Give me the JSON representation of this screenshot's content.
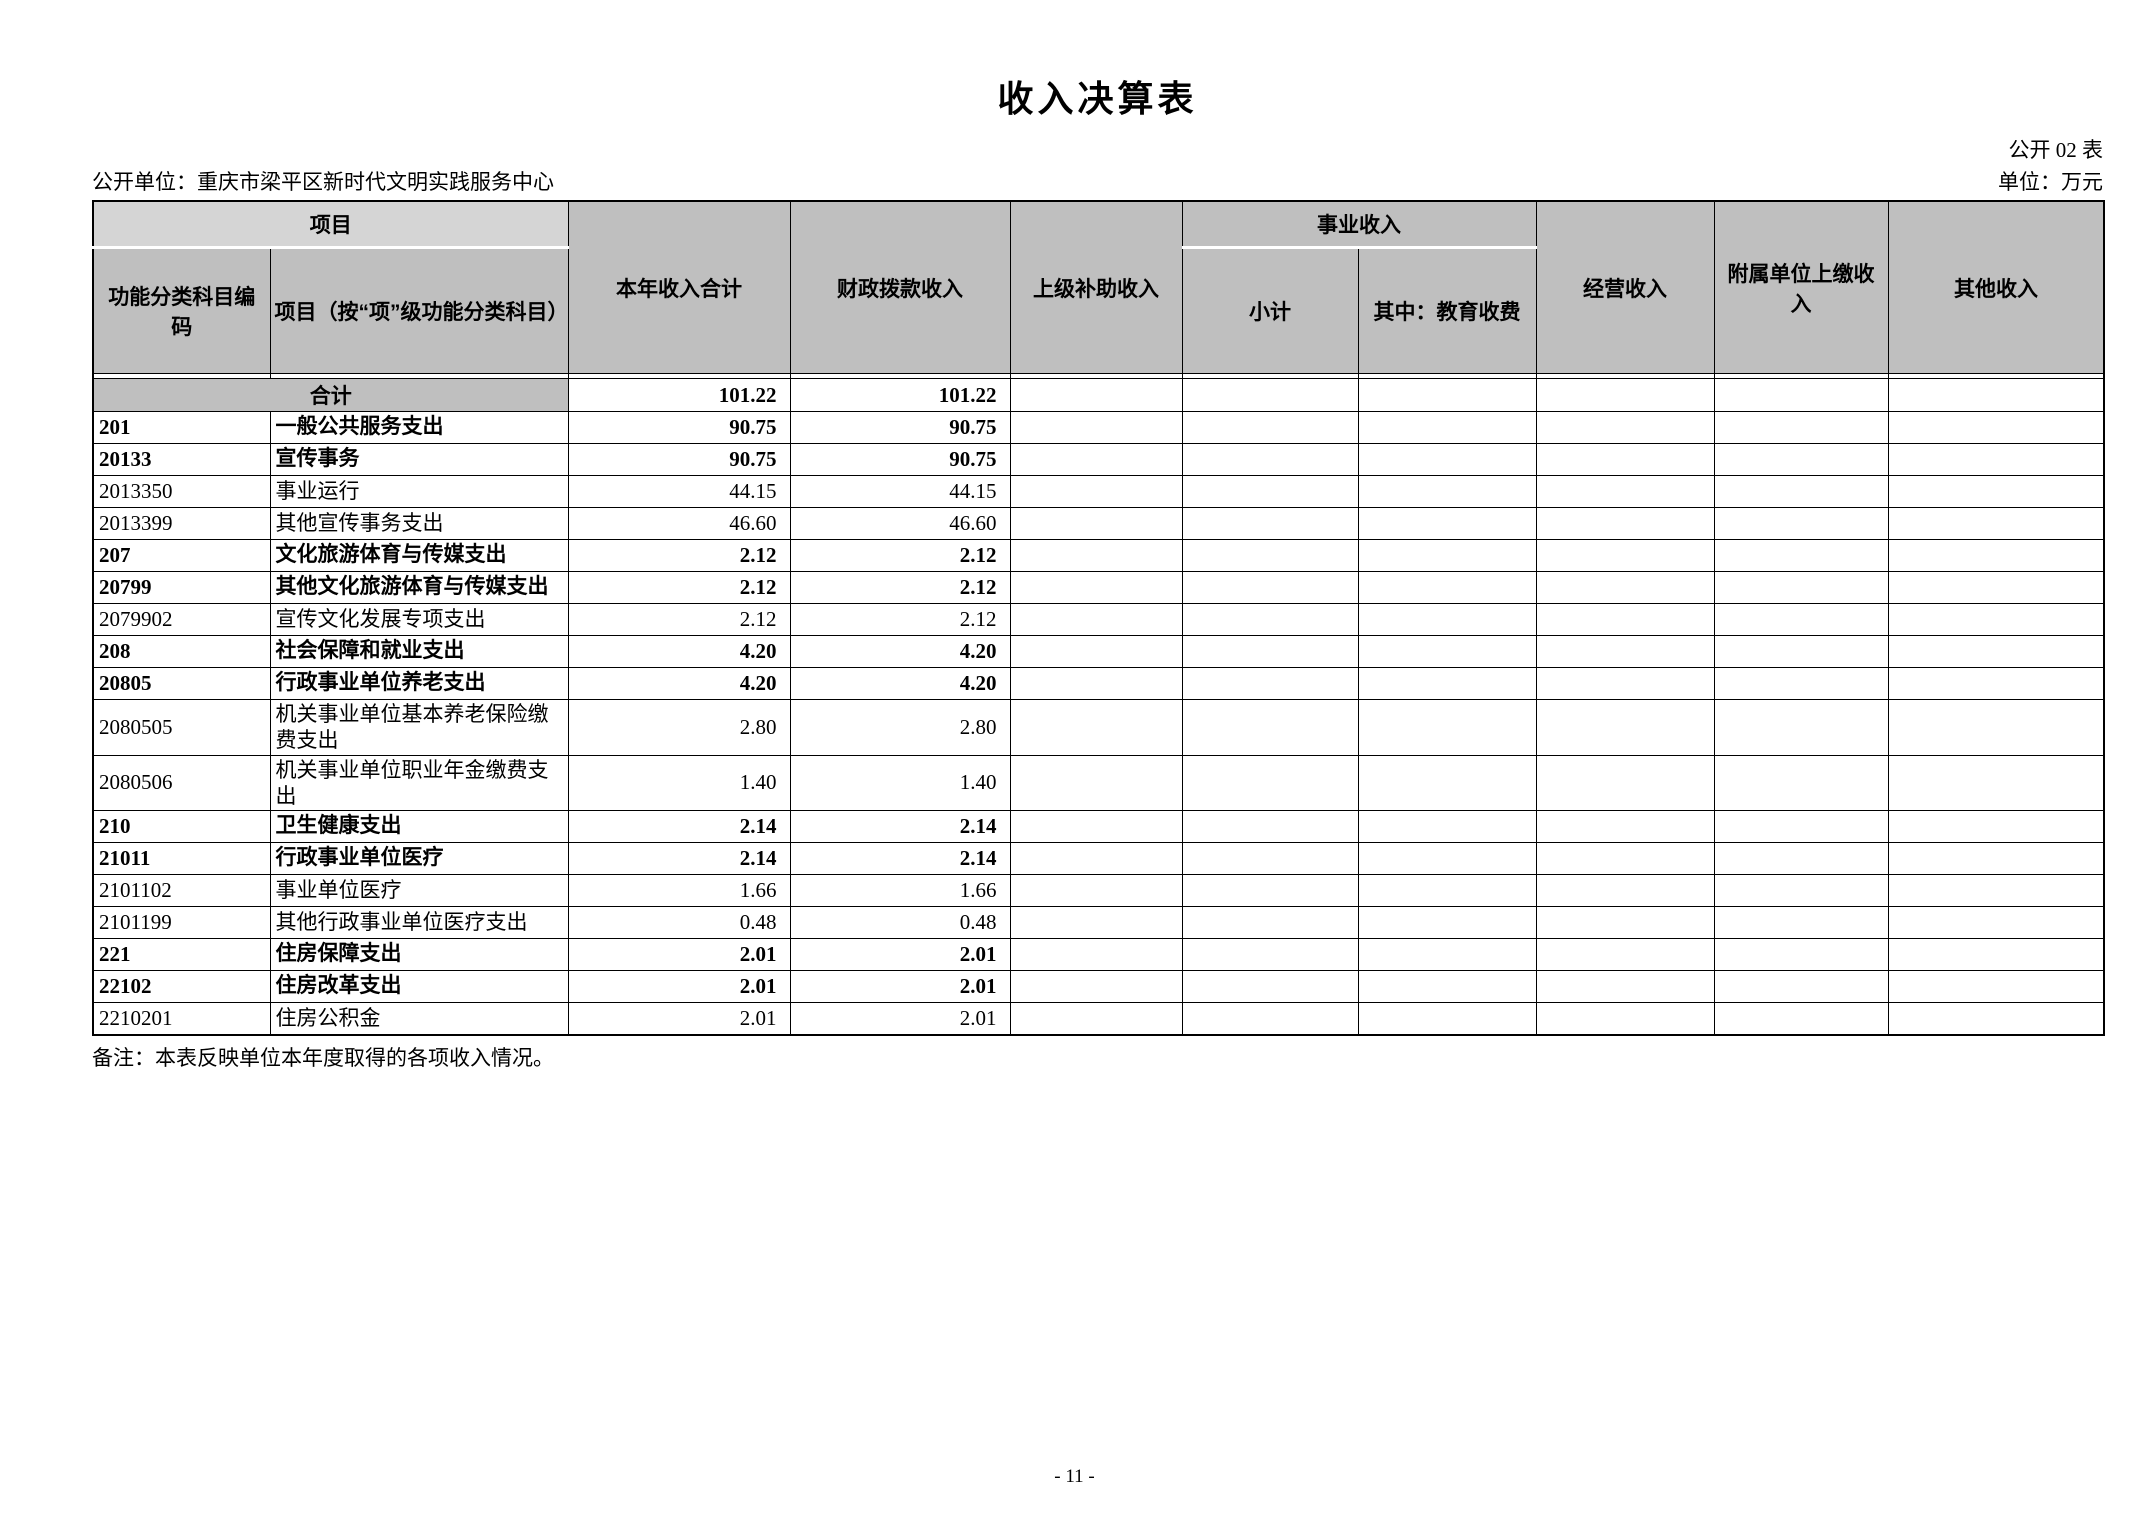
{
  "page": {
    "title": "收入决算表",
    "form_label": "公开 02 表",
    "unit_label": "单位：万元",
    "org_label": "公开单位：重庆市梁平区新时代文明实践服务中心",
    "note": "备注：本表反映单位本年度取得的各项收入情况。",
    "page_number": "- 11 -"
  },
  "colors": {
    "header_gray": "#bfbfbf",
    "header_gray_light": "#d5d5d5",
    "border": "#000000",
    "page_bg": "#ffffff"
  },
  "table": {
    "headers": {
      "project_group": "项目",
      "code": "功能分类科目编码",
      "item": "项目（按“项”级功能分类科目）",
      "year_total": "本年收入合计",
      "fiscal_grant": "财政拨款收入",
      "superior_subsidy": "上级补助收入",
      "business_group": "事业收入",
      "subtotal": "小计",
      "education_fee": "其中：教育收费",
      "operating": "经营收入",
      "affiliated_remit": "附属单位上缴收入",
      "other": "其他收入"
    },
    "total_row": {
      "label": "合计",
      "year_total": "101.22",
      "fiscal_grant": "101.22"
    },
    "rows": [
      {
        "code": "201",
        "item": "一般公共服务支出",
        "year_total": "90.75",
        "fiscal_grant": "90.75",
        "bold": true
      },
      {
        "code": "20133",
        "item": "宣传事务",
        "year_total": "90.75",
        "fiscal_grant": "90.75",
        "bold": true
      },
      {
        "code": "2013350",
        "item": "事业运行",
        "year_total": "44.15",
        "fiscal_grant": "44.15",
        "bold": false
      },
      {
        "code": "2013399",
        "item": "其他宣传事务支出",
        "year_total": "46.60",
        "fiscal_grant": "46.60",
        "bold": false
      },
      {
        "code": "207",
        "item": "文化旅游体育与传媒支出",
        "year_total": "2.12",
        "fiscal_grant": "2.12",
        "bold": true
      },
      {
        "code": "20799",
        "item": "其他文化旅游体育与传媒支出",
        "year_total": "2.12",
        "fiscal_grant": "2.12",
        "bold": true
      },
      {
        "code": "2079902",
        "item": "宣传文化发展专项支出",
        "year_total": "2.12",
        "fiscal_grant": "2.12",
        "bold": false
      },
      {
        "code": "208",
        "item": "社会保障和就业支出",
        "year_total": "4.20",
        "fiscal_grant": "4.20",
        "bold": true
      },
      {
        "code": "20805",
        "item": "行政事业单位养老支出",
        "year_total": "4.20",
        "fiscal_grant": "4.20",
        "bold": true
      },
      {
        "code": "2080505",
        "item": "机关事业单位基本养老保险缴费支出",
        "year_total": "2.80",
        "fiscal_grant": "2.80",
        "bold": false
      },
      {
        "code": "2080506",
        "item": "机关事业单位职业年金缴费支出",
        "year_total": "1.40",
        "fiscal_grant": "1.40",
        "bold": false
      },
      {
        "code": "210",
        "item": "卫生健康支出",
        "year_total": "2.14",
        "fiscal_grant": "2.14",
        "bold": true
      },
      {
        "code": "21011",
        "item": "行政事业单位医疗",
        "year_total": "2.14",
        "fiscal_grant": "2.14",
        "bold": true
      },
      {
        "code": "2101102",
        "item": "事业单位医疗",
        "year_total": "1.66",
        "fiscal_grant": "1.66",
        "bold": false
      },
      {
        "code": "2101199",
        "item": "其他行政事业单位医疗支出",
        "year_total": "0.48",
        "fiscal_grant": "0.48",
        "bold": false
      },
      {
        "code": "221",
        "item": "住房保障支出",
        "year_total": "2.01",
        "fiscal_grant": "2.01",
        "bold": true
      },
      {
        "code": "22102",
        "item": "住房改革支出",
        "year_total": "2.01",
        "fiscal_grant": "2.01",
        "bold": true
      },
      {
        "code": "2210201",
        "item": "住房公积金",
        "year_total": "2.01",
        "fiscal_grant": "2.01",
        "bold": false
      }
    ],
    "empty_trailing_columns": 7
  }
}
